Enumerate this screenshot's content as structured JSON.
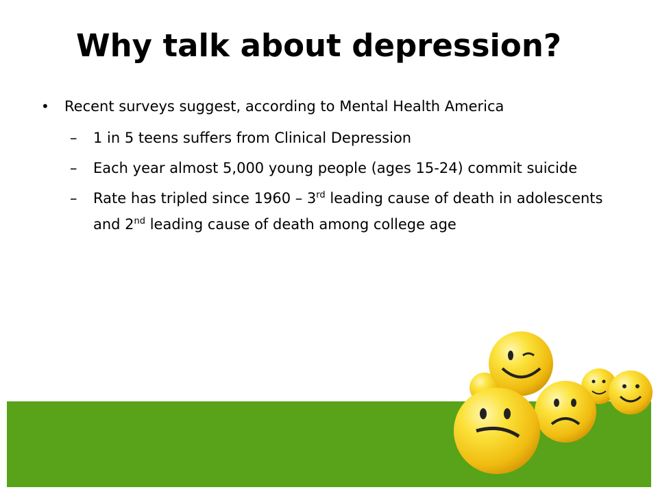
{
  "slide": {
    "title": "Why talk about depression?",
    "bullet1": "Recent surveys suggest, according to Mental Health America",
    "dash": "–",
    "bullet_mark": "•",
    "sub1": "1 in 5 teens suffers from Clinical Depression",
    "sub2": "Each year almost 5,000 young people (ages 15-24) commit suicide",
    "sub3_a": "Rate has tripled since 1960 – 3",
    "sub3_sup1": "rd",
    "sub3_b": " leading cause of death in adolescents and 2",
    "sub3_sup2": "nd",
    "sub3_c": " leading cause of death among college age"
  },
  "colors": {
    "band": "#58a31a",
    "smiley": "#f7d21c"
  }
}
